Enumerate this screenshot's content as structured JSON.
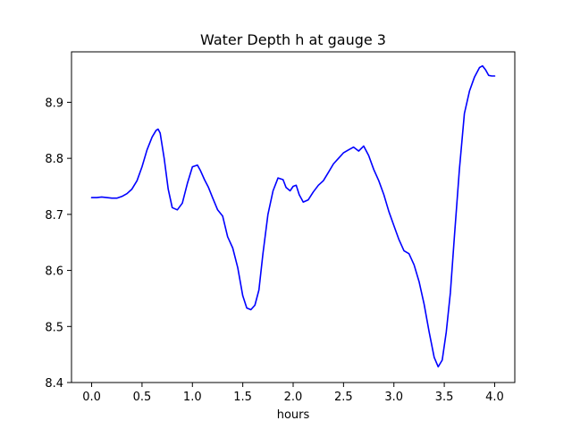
{
  "chart_data": {
    "type": "line",
    "title": "Water Depth h at gauge 3",
    "xlabel": "hours",
    "ylabel": "",
    "xlim": [
      -0.2,
      4.2
    ],
    "ylim": [
      8.4,
      8.99
    ],
    "xticks": [
      0.0,
      0.5,
      1.0,
      1.5,
      2.0,
      2.5,
      3.0,
      3.5,
      4.0
    ],
    "xtick_labels": [
      "0.0",
      "0.5",
      "1.0",
      "1.5",
      "2.0",
      "2.5",
      "3.0",
      "3.5",
      "4.0"
    ],
    "yticks": [
      8.4,
      8.5,
      8.6,
      8.7,
      8.8,
      8.9
    ],
    "ytick_labels": [
      "8.4",
      "8.5",
      "8.6",
      "8.7",
      "8.8",
      "8.9"
    ],
    "grid": false,
    "legend": "none",
    "series": [
      {
        "color": "#0000ff",
        "x": [
          0.0,
          0.05,
          0.1,
          0.15,
          0.2,
          0.25,
          0.3,
          0.35,
          0.4,
          0.45,
          0.5,
          0.55,
          0.6,
          0.64,
          0.66,
          0.68,
          0.72,
          0.76,
          0.8,
          0.85,
          0.9,
          0.95,
          1.0,
          1.05,
          1.08,
          1.12,
          1.16,
          1.2,
          1.25,
          1.3,
          1.35,
          1.4,
          1.45,
          1.5,
          1.54,
          1.58,
          1.62,
          1.66,
          1.7,
          1.75,
          1.8,
          1.85,
          1.9,
          1.93,
          1.97,
          2.0,
          2.03,
          2.06,
          2.1,
          2.15,
          2.2,
          2.25,
          2.3,
          2.35,
          2.4,
          2.45,
          2.5,
          2.55,
          2.6,
          2.65,
          2.7,
          2.75,
          2.8,
          2.85,
          2.9,
          2.95,
          3.0,
          3.05,
          3.1,
          3.15,
          3.2,
          3.25,
          3.3,
          3.35,
          3.4,
          3.44,
          3.48,
          3.52,
          3.56,
          3.6,
          3.65,
          3.7,
          3.75,
          3.8,
          3.85,
          3.88,
          3.91,
          3.94,
          3.97,
          4.0
        ],
        "y": [
          8.73,
          8.73,
          8.731,
          8.73,
          8.729,
          8.729,
          8.732,
          8.737,
          8.745,
          8.76,
          8.785,
          8.815,
          8.838,
          8.85,
          8.852,
          8.845,
          8.8,
          8.745,
          8.712,
          8.708,
          8.72,
          8.755,
          8.785,
          8.788,
          8.778,
          8.762,
          8.748,
          8.73,
          8.708,
          8.697,
          8.66,
          8.64,
          8.605,
          8.555,
          8.533,
          8.53,
          8.538,
          8.565,
          8.63,
          8.7,
          8.742,
          8.765,
          8.762,
          8.748,
          8.742,
          8.75,
          8.752,
          8.735,
          8.722,
          8.726,
          8.74,
          8.752,
          8.76,
          8.775,
          8.79,
          8.8,
          8.81,
          8.815,
          8.82,
          8.813,
          8.822,
          8.805,
          8.78,
          8.76,
          8.735,
          8.705,
          8.68,
          8.655,
          8.635,
          8.63,
          8.61,
          8.58,
          8.54,
          8.49,
          8.445,
          8.428,
          8.44,
          8.49,
          8.56,
          8.66,
          8.78,
          8.88,
          8.92,
          8.945,
          8.962,
          8.965,
          8.958,
          8.948,
          8.947,
          8.947
        ]
      }
    ]
  }
}
